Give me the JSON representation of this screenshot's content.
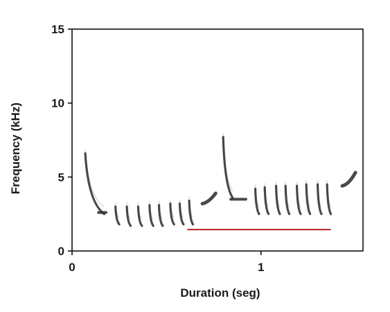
{
  "chart_data": {
    "type": "spectrogram",
    "title": "",
    "xlabel": "Duration (seg)",
    "ylabel": "Frequency (kHz)",
    "xlim": [
      0,
      1.54
    ],
    "ylim": [
      0,
      15
    ],
    "x_ticks": [
      0,
      1
    ],
    "x_tick_labels": [
      "0",
      "1"
    ],
    "y_ticks": [
      0,
      5,
      10,
      15
    ],
    "y_tick_labels": [
      "0",
      "5",
      "10",
      "15"
    ],
    "grid": false,
    "legend": "none",
    "colors": {
      "signal": "#2a2a2a",
      "marker_line": "#b22222",
      "frame": "#000000"
    },
    "notes_descending": [
      {
        "t_start": 0.07,
        "t_end": 0.17,
        "f_start": 6.6,
        "f_end": 2.5
      },
      {
        "t_start": 0.23,
        "t_end": 0.25,
        "f_start": 3.0,
        "f_end": 1.8
      },
      {
        "t_start": 0.29,
        "t_end": 0.31,
        "f_start": 3.0,
        "f_end": 1.7
      },
      {
        "t_start": 0.35,
        "t_end": 0.37,
        "f_start": 3.0,
        "f_end": 1.7
      },
      {
        "t_start": 0.41,
        "t_end": 0.43,
        "f_start": 3.1,
        "f_end": 1.7
      },
      {
        "t_start": 0.46,
        "t_end": 0.48,
        "f_start": 3.1,
        "f_end": 1.7
      },
      {
        "t_start": 0.52,
        "t_end": 0.54,
        "f_start": 3.2,
        "f_end": 1.8
      },
      {
        "t_start": 0.57,
        "t_end": 0.59,
        "f_start": 3.2,
        "f_end": 1.8
      },
      {
        "t_start": 0.62,
        "t_end": 0.64,
        "f_start": 3.4,
        "f_end": 1.8
      },
      {
        "t_start": 0.8,
        "t_end": 0.85,
        "f_start": 7.7,
        "f_end": 3.6
      },
      {
        "t_start": 0.97,
        "t_end": 0.99,
        "f_start": 4.2,
        "f_end": 2.5
      },
      {
        "t_start": 1.02,
        "t_end": 1.04,
        "f_start": 4.3,
        "f_end": 2.5
      },
      {
        "t_start": 1.08,
        "t_end": 1.1,
        "f_start": 4.4,
        "f_end": 2.5
      },
      {
        "t_start": 1.13,
        "t_end": 1.15,
        "f_start": 4.4,
        "f_end": 2.5
      },
      {
        "t_start": 1.19,
        "t_end": 1.21,
        "f_start": 4.4,
        "f_end": 2.5
      },
      {
        "t_start": 1.24,
        "t_end": 1.26,
        "f_start": 4.5,
        "f_end": 2.5
      },
      {
        "t_start": 1.3,
        "t_end": 1.32,
        "f_start": 4.5,
        "f_end": 2.5
      },
      {
        "t_start": 1.35,
        "t_end": 1.37,
        "f_start": 4.5,
        "f_end": 2.5
      }
    ],
    "notes_flat": [
      {
        "t_start": 0.14,
        "t_end": 0.18,
        "f_start": 2.6,
        "f_end": 2.6
      },
      {
        "t_start": 0.84,
        "t_end": 0.92,
        "f_start": 3.5,
        "f_end": 3.5
      }
    ],
    "notes_rising": [
      {
        "t_start": 0.69,
        "t_end": 0.76,
        "f_start": 3.2,
        "f_end": 3.9
      },
      {
        "t_start": 1.43,
        "t_end": 1.5,
        "f_start": 4.4,
        "f_end": 5.3
      }
    ],
    "marker_line": {
      "t_start": 0.61,
      "t_end": 1.37,
      "f": 1.45
    }
  }
}
